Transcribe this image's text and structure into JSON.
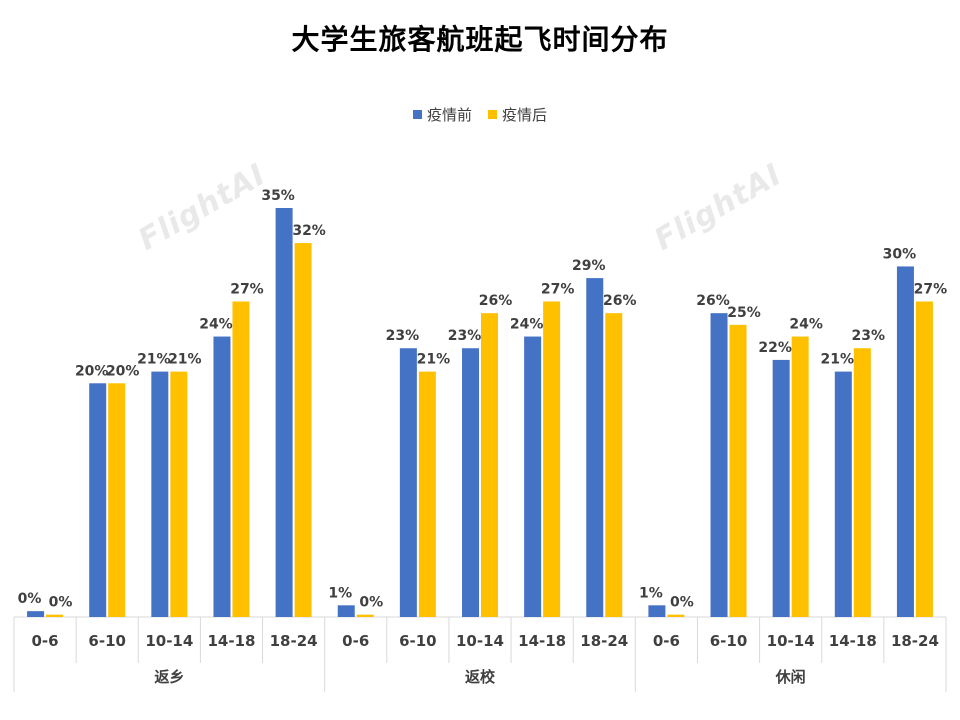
{
  "watermark": "FlightAI",
  "colors": {
    "pre": "#4472C4",
    "post": "#FFC000",
    "axis": "#D9D9D9",
    "text": "#404040"
  },
  "chart_data": {
    "type": "bar",
    "title": "大学生旅客航班起飞时间分布",
    "legend_position": "top",
    "grid": false,
    "ylim": [
      0,
      38
    ],
    "categories": [
      "0-6",
      "6-10",
      "10-14",
      "14-18",
      "18-24"
    ],
    "groups": [
      "返乡",
      "返校",
      "休闲"
    ],
    "series": [
      {
        "name": "疫情前",
        "values": [
          [
            0.5,
            20,
            21,
            24,
            35
          ],
          [
            1,
            23,
            23,
            24,
            29
          ],
          [
            1,
            26,
            22,
            21,
            30
          ]
        ]
      },
      {
        "name": "疫情后",
        "values": [
          [
            0.2,
            20,
            21,
            27,
            32
          ],
          [
            0.2,
            21,
            26,
            27,
            26
          ],
          [
            0.2,
            25,
            24,
            23,
            27
          ]
        ]
      }
    ],
    "data_labels": [
      [
        [
          "0%",
          "20%",
          "21%",
          "24%",
          "35%"
        ],
        [
          "1%",
          "23%",
          "23%",
          "24%",
          "29%"
        ],
        [
          "1%",
          "26%",
          "22%",
          "21%",
          "30%"
        ]
      ],
      [
        [
          "0%",
          "20%",
          "21%",
          "27%",
          "32%"
        ],
        [
          "0%",
          "21%",
          "26%",
          "27%",
          "26%"
        ],
        [
          "0%",
          "25%",
          "24%",
          "23%",
          "27%"
        ]
      ]
    ]
  }
}
